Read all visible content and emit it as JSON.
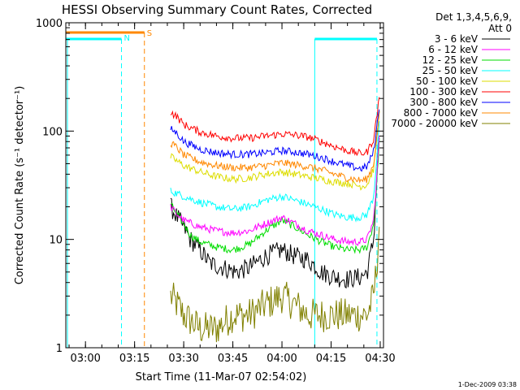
{
  "chart_data": {
    "type": "line",
    "title": "HESSI Observing Summary Count Rates, Corrected",
    "ylabel": "Corrected Count Rate (s⁻¹ detector⁻¹)",
    "xlabel": "Start Time (11-Mar-07 02:54:02)",
    "y_scale": "log",
    "ylim": [
      1,
      1000
    ],
    "y_ticks": [
      "1",
      "10",
      "100",
      "1000"
    ],
    "xlim": [
      "02:54",
      "04:31"
    ],
    "x_ticks": [
      "03:00",
      "03:15",
      "03:30",
      "03:45",
      "04:00",
      "04:15",
      "04:30"
    ],
    "legend_header": [
      "Det 1,3,4,5,6,9,",
      "Att 0"
    ],
    "legend_position": "right",
    "footer": "1-Dec-2009 03:38",
    "series": [
      {
        "name": "3 - 6 keV",
        "color": "#000000",
        "x": [
          "03:26",
          "03:28",
          "03:30",
          "03:32",
          "03:35",
          "03:38",
          "03:42",
          "03:46",
          "03:50",
          "03:55",
          "04:00",
          "04:04",
          "04:08",
          "04:12",
          "04:16",
          "04:20",
          "04:24",
          "04:26",
          "04:28",
          "04:29",
          "04:30"
        ],
        "y": [
          20,
          16,
          13,
          10,
          8,
          6,
          5.5,
          5,
          5.5,
          7,
          8,
          7,
          6.5,
          5,
          4.5,
          4.3,
          4.5,
          5,
          10,
          40,
          120
        ]
      },
      {
        "name": "6 - 12 keV",
        "color": "#ff00ff",
        "x": [
          "03:26",
          "03:28",
          "03:30",
          "03:35",
          "03:40",
          "03:45",
          "03:50",
          "03:55",
          "04:00",
          "04:04",
          "04:08",
          "04:12",
          "04:16",
          "04:20",
          "04:24",
          "04:26",
          "04:28",
          "04:29",
          "04:30"
        ],
        "y": [
          20,
          17,
          15,
          13,
          12,
          11.5,
          12,
          14,
          16,
          14,
          12,
          11,
          10,
          9.5,
          9.5,
          10,
          15,
          40,
          130
        ]
      },
      {
        "name": "12 - 25 keV",
        "color": "#00dd00",
        "x": [
          "03:26",
          "03:28",
          "03:30",
          "03:32",
          "03:35",
          "03:40",
          "03:45",
          "03:50",
          "03:55",
          "04:00",
          "04:04",
          "04:08",
          "04:12",
          "04:16",
          "04:20",
          "04:24",
          "04:26",
          "04:28",
          "04:29",
          "04:30"
        ],
        "y": [
          21,
          17,
          14,
          11,
          9.5,
          8.5,
          8,
          9,
          12,
          15,
          13,
          11,
          9.5,
          8.5,
          8,
          8,
          8.5,
          14,
          35,
          120
        ]
      },
      {
        "name": "25 - 50 keV",
        "color": "#00ffff",
        "x": [
          "03:26",
          "03:30",
          "03:35",
          "03:40",
          "03:45",
          "03:50",
          "03:55",
          "04:00",
          "04:04",
          "04:08",
          "04:12",
          "04:16",
          "04:20",
          "04:24",
          "04:26",
          "04:28",
          "04:29",
          "04:30"
        ],
        "y": [
          28,
          25,
          22,
          20,
          19,
          20,
          23,
          25,
          23,
          21,
          19,
          17,
          16,
          16,
          17,
          25,
          60,
          150
        ]
      },
      {
        "name": "50 - 100 keV",
        "color": "#dddd00",
        "x": [
          "03:26",
          "03:30",
          "03:35",
          "03:40",
          "03:45",
          "03:50",
          "03:55",
          "04:00",
          "04:04",
          "04:08",
          "04:12",
          "04:16",
          "04:20",
          "04:24",
          "04:26",
          "04:28",
          "04:29",
          "04:30"
        ],
        "y": [
          58,
          48,
          42,
          38,
          36,
          37,
          40,
          42,
          40,
          38,
          36,
          34,
          33,
          31,
          32,
          45,
          90,
          180
        ]
      },
      {
        "name": "100 - 300 keV",
        "color": "#ff0000",
        "x": [
          "03:26",
          "03:28",
          "03:30",
          "03:35",
          "03:40",
          "03:45",
          "03:50",
          "03:55",
          "04:00",
          "04:04",
          "04:08",
          "04:12",
          "04:16",
          "04:20",
          "04:24",
          "04:26",
          "04:28",
          "04:29",
          "04:30"
        ],
        "y": [
          150,
          135,
          115,
          98,
          90,
          86,
          86,
          90,
          94,
          92,
          88,
          80,
          72,
          66,
          62,
          64,
          85,
          140,
          250
        ]
      },
      {
        "name": "300 - 800 keV",
        "color": "#0000ff",
        "x": [
          "03:26",
          "03:28",
          "03:30",
          "03:35",
          "03:40",
          "03:45",
          "03:50",
          "03:55",
          "04:00",
          "04:04",
          "04:08",
          "04:12",
          "04:16",
          "04:20",
          "04:24",
          "04:26",
          "04:28",
          "04:29",
          "04:30"
        ],
        "y": [
          105,
          95,
          80,
          68,
          63,
          61,
          61,
          63,
          66,
          64,
          61,
          57,
          52,
          48,
          45,
          47,
          65,
          110,
          200
        ]
      },
      {
        "name": "800 - 7000 keV",
        "color": "#ff8800",
        "x": [
          "03:26",
          "03:28",
          "03:30",
          "03:35",
          "03:40",
          "03:45",
          "03:50",
          "03:55",
          "04:00",
          "04:04",
          "04:08",
          "04:12",
          "04:16",
          "04:20",
          "04:24",
          "04:26",
          "04:28",
          "04:29",
          "04:30"
        ],
        "y": [
          78,
          70,
          60,
          52,
          48,
          46,
          46,
          48,
          51,
          49,
          47,
          44,
          40,
          37,
          35,
          36,
          50,
          90,
          170
        ]
      },
      {
        "name": "7000 - 20000 keV",
        "color": "#808000",
        "x": [
          "03:26",
          "03:28",
          "03:30",
          "03:35",
          "03:40",
          "03:45",
          "03:50",
          "03:55",
          "04:00",
          "04:04",
          "04:08",
          "04:12",
          "04:16",
          "04:20",
          "04:24",
          "04:26",
          "04:28",
          "04:29",
          "04:30"
        ],
        "y": [
          3,
          2.5,
          2,
          1.5,
          1.5,
          2,
          2,
          2.5,
          3,
          2.5,
          2,
          2,
          2,
          2,
          2,
          2,
          3,
          6,
          20
        ]
      }
    ],
    "flags": [
      {
        "label": "N",
        "color": "#00ffff"
      },
      {
        "label": "S",
        "color": "#ff8800"
      }
    ]
  }
}
